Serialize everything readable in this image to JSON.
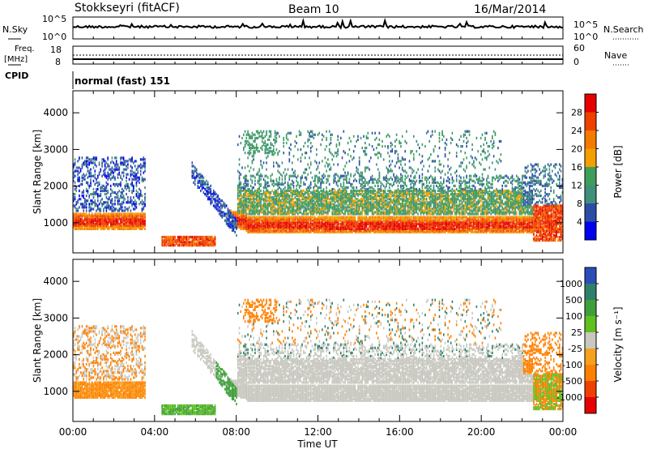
{
  "header": {
    "station": "Stokkseyri (fitACF)",
    "beam": "Beam 10",
    "date": "16/Mar/2014"
  },
  "side_labels": {
    "nsky": "N.Sky",
    "freq": "Freq.",
    "mhz": "[MHz]",
    "cpid": "CPID",
    "nsearch": "N.Search",
    "nave": "Nave",
    "cpid_text": "normal (fast) 151"
  },
  "nsky_ticks": {
    "top_left": "10^5",
    "bottom_left": "10^0",
    "top_right": "10^5",
    "bottom_right": "10^0"
  },
  "freq_ticks": {
    "top_left": "18",
    "bottom_left": "8",
    "top_right": "60",
    "bottom_right": "0"
  },
  "colors": {
    "power_scale": [
      "#0000ee",
      "#2a4ea6",
      "#3f8f7a",
      "#3f9f5a",
      "#f2a000",
      "#f57a00",
      "#ef4000",
      "#e60000"
    ],
    "velocity_scale": [
      "#2a4eb6",
      "#2f7f6a",
      "#3f9f3a",
      "#60c020",
      "#c8c8c0",
      "#f6a020",
      "#ff8000",
      "#f04000",
      "#e60000"
    ]
  },
  "chart_data": [
    {
      "type": "heatmap",
      "title": "",
      "ylabel": "Slant Range [km]",
      "colorbar_label": "Power [dB]",
      "colorbar_ticks": [
        "4",
        "8",
        "12",
        "16",
        "20",
        "24",
        "28"
      ],
      "y_ticks": [
        "1000",
        "2000",
        "3000",
        "4000"
      ],
      "ylim": [
        180,
        4600
      ],
      "x_ticks": [
        "00:00",
        "04:00",
        "08:00",
        "12:00",
        "16:00",
        "20:00",
        "00:00"
      ],
      "xlim_hours": [
        0,
        24
      ],
      "description_series": [
        {
          "name": "",
          "x_hours": [
            0,
            24
          ],
          "y_km": [
            800,
            1300
          ]
        }
      ]
    },
    {
      "type": "heatmap",
      "title": "",
      "ylabel": "Slant Range [km]",
      "xlabel": "Time UT",
      "colorbar_label": "Velocity [m s⁻¹]",
      "colorbar_ticks": [
        "1000",
        "500",
        "100",
        "25",
        "-25",
        "-100",
        "-500",
        "-1000"
      ],
      "y_ticks": [
        "1000",
        "2000",
        "3000",
        "4000"
      ],
      "ylim": [
        180,
        4600
      ],
      "x_ticks": [
        "00:00",
        "04:00",
        "08:00",
        "12:00",
        "16:00",
        "20:00",
        "00:00"
      ],
      "xlim_hours": [
        0,
        24
      ]
    }
  ]
}
